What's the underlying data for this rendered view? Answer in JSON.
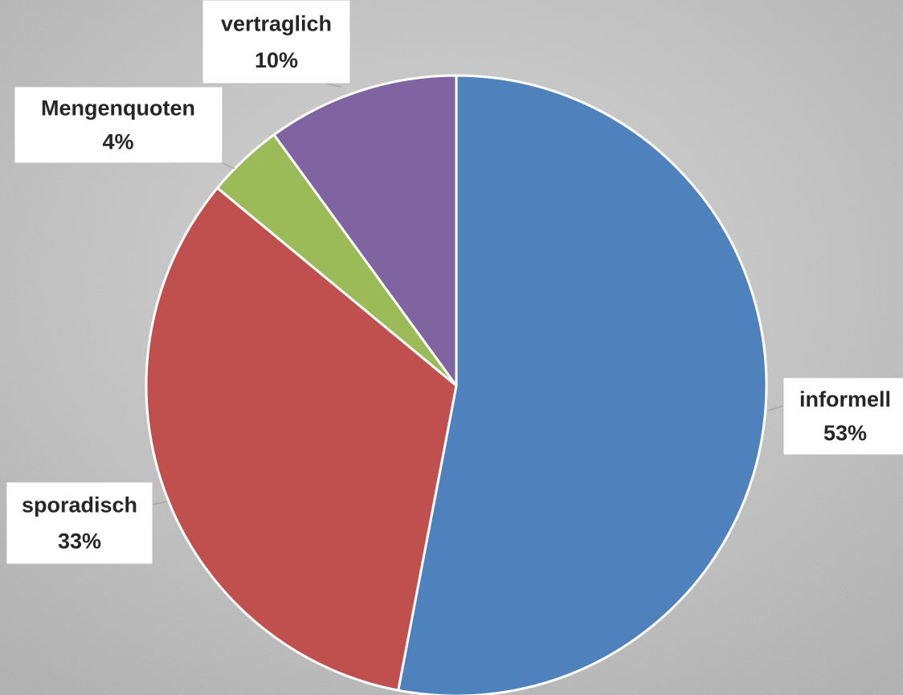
{
  "chart_data": {
    "type": "pie",
    "categories": [
      "informell",
      "sporadisch",
      "Mengenquoten",
      "vertraglich"
    ],
    "values": [
      53,
      33,
      4,
      10
    ],
    "value_labels": [
      "53%",
      "33%",
      "4%",
      "10%"
    ],
    "colors": [
      "#4f81bd",
      "#c0504d",
      "#9bbb59",
      "#8064a2"
    ]
  }
}
